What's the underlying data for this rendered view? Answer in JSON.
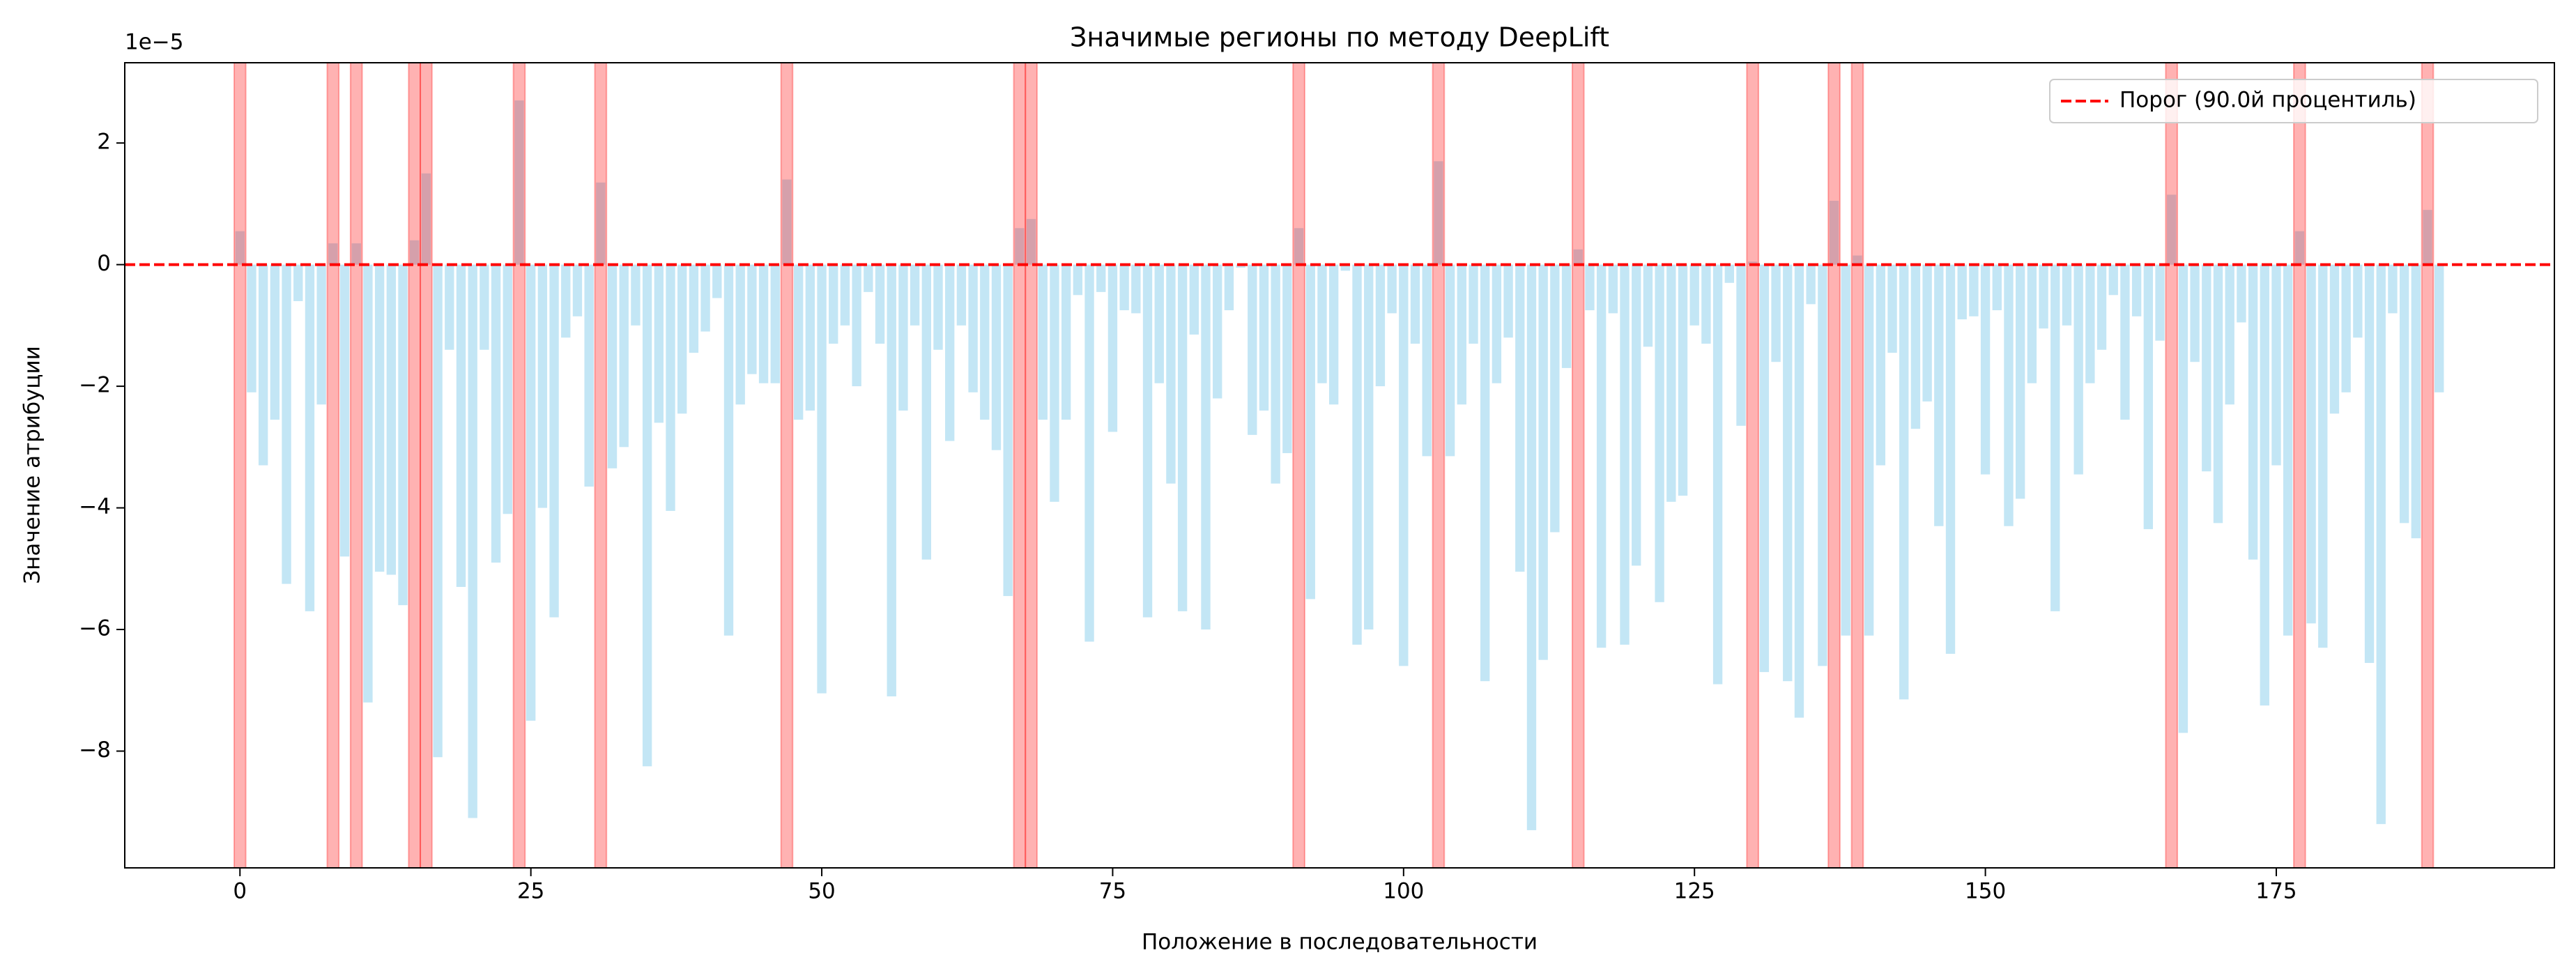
{
  "chart_data": {
    "type": "bar",
    "title": "Значимые регионы по методу DeepLift",
    "x_label": "Положение в последовательности",
    "y_label": "Значение атрибуции",
    "y_offset_label": "1e−5",
    "x": [
      0,
      1,
      2,
      3,
      4,
      5,
      6,
      7,
      8,
      9,
      10,
      11,
      12,
      13,
      14,
      15,
      16,
      17,
      18,
      19,
      20,
      21,
      22,
      23,
      24,
      25,
      26,
      27,
      28,
      29,
      30,
      31,
      32,
      33,
      34,
      35,
      36,
      37,
      38,
      39,
      40,
      41,
      42,
      43,
      44,
      45,
      46,
      47,
      48,
      49,
      50,
      51,
      52,
      53,
      54,
      55,
      56,
      57,
      58,
      59,
      60,
      61,
      62,
      63,
      64,
      65,
      66,
      67,
      68,
      69,
      70,
      71,
      72,
      73,
      74,
      75,
      76,
      77,
      78,
      79,
      80,
      81,
      82,
      83,
      84,
      85,
      86,
      87,
      88,
      89,
      90,
      91,
      92,
      93,
      94,
      95,
      96,
      97,
      98,
      99,
      100,
      101,
      102,
      103,
      104,
      105,
      106,
      107,
      108,
      109,
      110,
      111,
      112,
      113,
      114,
      115,
      116,
      117,
      118,
      119,
      120,
      121,
      122,
      123,
      124,
      125,
      126,
      127,
      128,
      129,
      130,
      131,
      132,
      133,
      134,
      135,
      136,
      137,
      138,
      139,
      140,
      141,
      142,
      143,
      144,
      145,
      146,
      147,
      148,
      149,
      150,
      151,
      152,
      153,
      154,
      155,
      156,
      157,
      158,
      159,
      160,
      161,
      162,
      163,
      164,
      165,
      166,
      167,
      168,
      169,
      170,
      171,
      172,
      173,
      174,
      175,
      176,
      177,
      178,
      179,
      180,
      181,
      182,
      183,
      184,
      185,
      186,
      187,
      188,
      189
    ],
    "values": [
      0.55,
      -2.1,
      -3.3,
      -2.55,
      -5.25,
      -0.6,
      -5.7,
      -2.3,
      0.35,
      -4.8,
      0.35,
      -7.2,
      -5.05,
      -5.1,
      -5.6,
      0.4,
      1.5,
      -8.1,
      -1.4,
      -5.3,
      -9.1,
      -1.4,
      -4.9,
      -4.1,
      2.7,
      -7.5,
      -4.0,
      -5.8,
      -1.2,
      -0.85,
      -3.65,
      1.35,
      -3.35,
      -3.0,
      -1.0,
      -8.25,
      -2.6,
      -4.05,
      -2.45,
      -1.45,
      -1.1,
      -0.55,
      -6.1,
      -2.3,
      -1.8,
      -1.95,
      -1.95,
      1.4,
      -2.55,
      -2.4,
      -7.05,
      -1.3,
      -1.0,
      -2.0,
      -0.45,
      -1.3,
      -7.1,
      -2.4,
      -1.0,
      -4.85,
      -1.4,
      -2.9,
      -1.0,
      -2.1,
      -2.55,
      -3.05,
      -5.45,
      0.6,
      0.75,
      -2.55,
      -3.9,
      -2.55,
      -0.5,
      -6.2,
      -0.45,
      -2.75,
      -0.75,
      -0.8,
      -5.8,
      -1.95,
      -3.6,
      -5.7,
      -1.15,
      -6.0,
      -2.2,
      -0.75,
      -0.05,
      -2.8,
      -2.4,
      -3.6,
      -3.1,
      0.6,
      -5.5,
      -1.95,
      -2.3,
      -0.1,
      -6.25,
      -6.0,
      -2.0,
      -0.8,
      -6.6,
      -1.3,
      -3.15,
      1.7,
      -3.15,
      -2.3,
      -1.3,
      -6.85,
      -1.95,
      -1.2,
      -5.05,
      -9.3,
      -6.5,
      -4.4,
      -1.7,
      0.25,
      -0.75,
      -6.3,
      -0.8,
      -6.25,
      -4.95,
      -1.35,
      -5.55,
      -3.9,
      -3.8,
      -1.0,
      -1.3,
      -6.9,
      -0.3,
      -2.65,
      0.05,
      -6.7,
      -1.6,
      -6.85,
      -7.45,
      -0.65,
      -6.6,
      1.05,
      -6.1,
      0.15,
      -6.1,
      -3.3,
      -1.45,
      -7.15,
      -2.7,
      -2.25,
      -4.3,
      -6.4,
      -0.9,
      -0.85,
      -3.45,
      -0.75,
      -4.3,
      -3.85,
      -1.95,
      -1.05,
      -5.7,
      -1.0,
      -3.45,
      -1.95,
      -1.4,
      -0.5,
      -2.55,
      -0.85,
      -4.35,
      -1.25,
      1.15,
      -7.7,
      -1.6,
      -3.4,
      -4.25,
      -2.3,
      -0.95,
      -4.85,
      -7.25,
      -3.3,
      -6.1,
      0.55,
      -5.9,
      -6.3,
      -2.45,
      -2.1,
      -1.2,
      -6.55,
      -9.2,
      -0.8,
      -4.25,
      -4.5,
      0.9,
      -2.1
    ],
    "color": "#87ceeb",
    "highlights": [
      0,
      8,
      10,
      15,
      16,
      24,
      31,
      47,
      67,
      68,
      91,
      103,
      115,
      130,
      137,
      139,
      166,
      177,
      188
    ],
    "highlight_color": "#ff0000",
    "threshold": 0,
    "threshold_label": "Порог (90.0й процентиль)",
    "threshold_color": "#ff0000",
    "legend": "upper right",
    "xlim": [
      -9.9,
      198.9
    ],
    "xticks": [
      0,
      25,
      50,
      75,
      100,
      125,
      150,
      175
    ],
    "ylim": [
      -9.92,
      3.32
    ],
    "yticks": [
      {
        "value": -8,
        "label": "−8"
      },
      {
        "value": -6,
        "label": "−6"
      },
      {
        "value": -4,
        "label": "−4"
      },
      {
        "value": -2,
        "label": "−2"
      },
      0,
      2
    ]
  }
}
